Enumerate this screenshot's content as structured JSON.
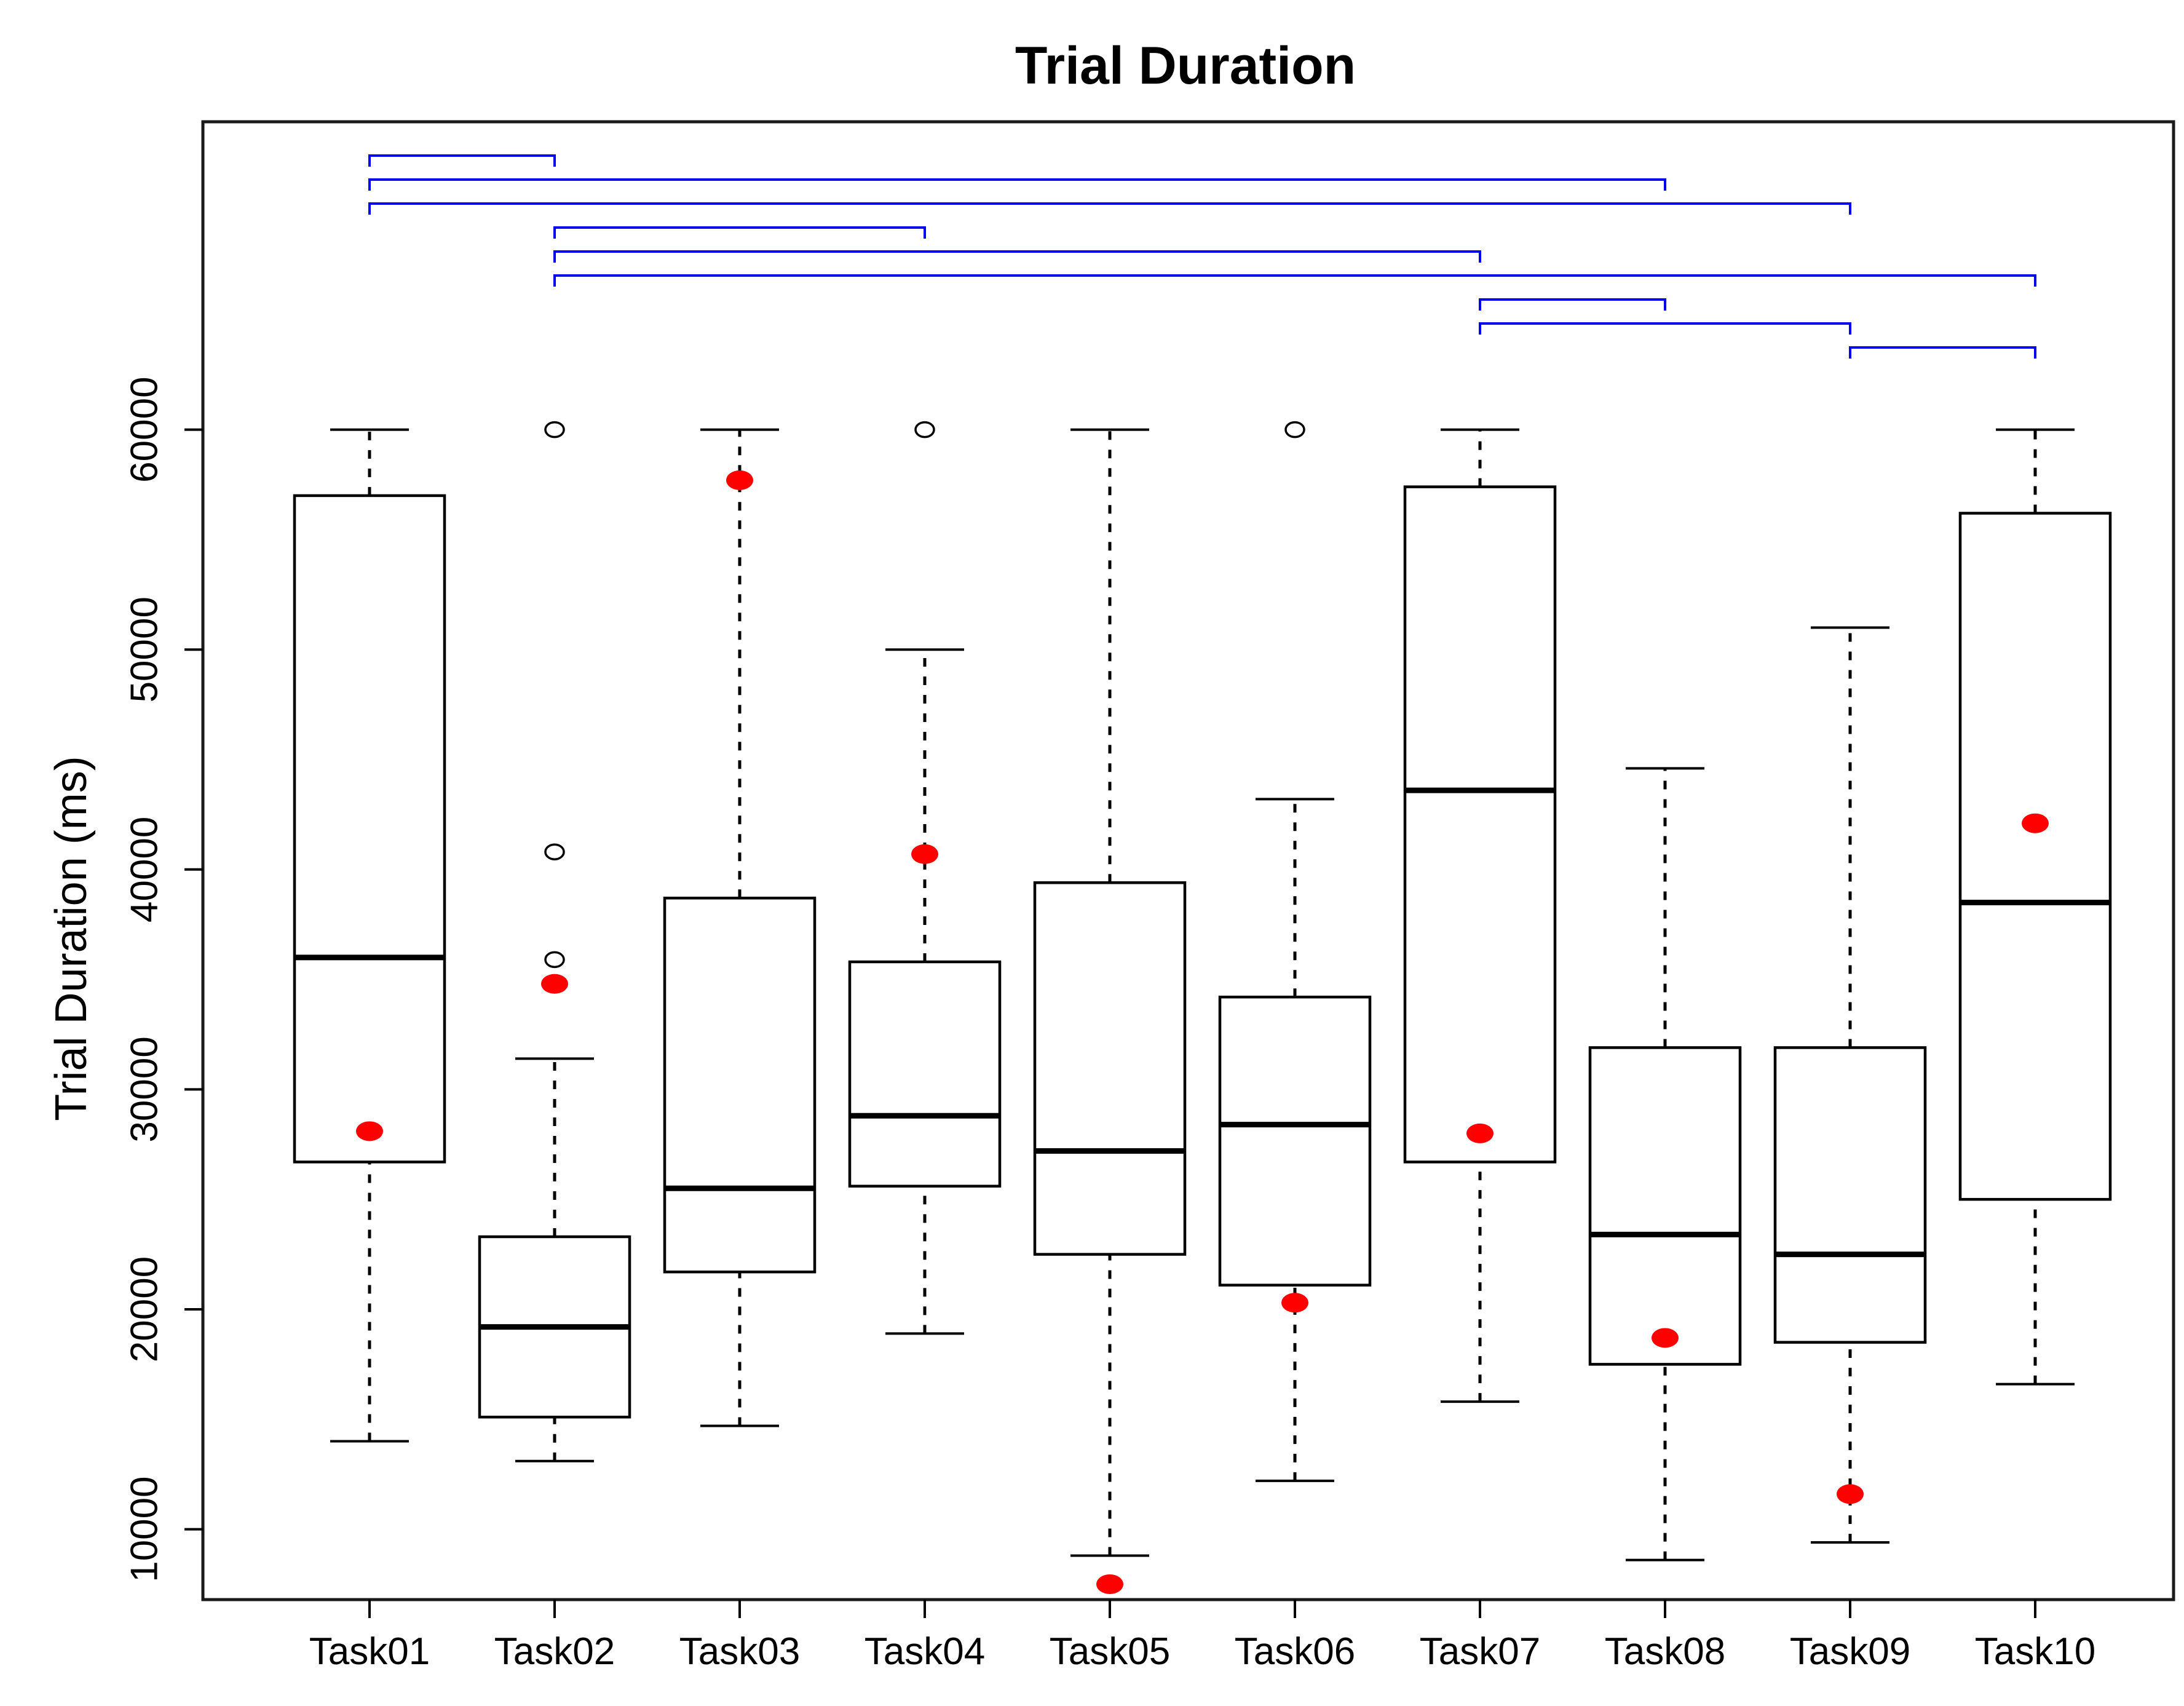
{
  "chart_data": {
    "type": "boxplot",
    "title": "Trial Duration",
    "ylabel": "Trial Duration (ms)",
    "xlabel": "",
    "grid": false,
    "legend": "none",
    "categories": [
      "Task01",
      "Task02",
      "Task03",
      "Task04",
      "Task05",
      "Task06",
      "Task07",
      "Task08",
      "Task09",
      "Task10"
    ],
    "yticks": [
      10000,
      20000,
      30000,
      40000,
      50000,
      60000
    ],
    "ylim": [
      6800,
      74000
    ],
    "colors": {
      "box_fill": "#ffffff",
      "line": "#000000",
      "mean_dot": "#ff0000",
      "outlier_stroke": "#000000",
      "bracket": "#0000ee"
    },
    "boxes": [
      {
        "label": "Task01",
        "whisker_low": 14000,
        "q1": 26700,
        "median": 36000,
        "q3": 57000,
        "whisker_high": 60000,
        "mean": 28100,
        "outliers": []
      },
      {
        "label": "Task02",
        "whisker_low": 13100,
        "q1": 15100,
        "median": 19200,
        "q3": 23300,
        "whisker_high": 31400,
        "mean": 34800,
        "outliers": [
          35900,
          40800,
          60000
        ]
      },
      {
        "label": "Task03",
        "whisker_low": 14700,
        "q1": 21700,
        "median": 25500,
        "q3": 38700,
        "whisker_high": 60000,
        "mean": 57700,
        "outliers": []
      },
      {
        "label": "Task04",
        "whisker_low": 18900,
        "q1": 25600,
        "median": 28800,
        "q3": 35800,
        "whisker_high": 50000,
        "mean": 40700,
        "outliers": [
          60000
        ]
      },
      {
        "label": "Task05",
        "whisker_low": 8800,
        "q1": 22500,
        "median": 27200,
        "q3": 39400,
        "whisker_high": 60000,
        "mean": 7500,
        "outliers": []
      },
      {
        "label": "Task06",
        "whisker_low": 12200,
        "q1": 21100,
        "median": 28400,
        "q3": 34200,
        "whisker_high": 43200,
        "mean": 20300,
        "outliers": [
          60000
        ]
      },
      {
        "label": "Task07",
        "whisker_low": 15800,
        "q1": 26700,
        "median": 43600,
        "q3": 57400,
        "whisker_high": 60000,
        "mean": 28000,
        "outliers": []
      },
      {
        "label": "Task08",
        "whisker_low": 8600,
        "q1": 17500,
        "median": 23400,
        "q3": 31900,
        "whisker_high": 44600,
        "mean": 18700,
        "outliers": []
      },
      {
        "label": "Task09",
        "whisker_low": 9400,
        "q1": 18500,
        "median": 22500,
        "q3": 31900,
        "whisker_high": 51000,
        "mean": 11600,
        "outliers": []
      },
      {
        "label": "Task10",
        "whisker_low": 16600,
        "q1": 25000,
        "median": 38500,
        "q3": 56200,
        "whisker_high": 60000,
        "mean": 42100,
        "outliers": []
      }
    ],
    "significance_brackets": [
      {
        "from": "Task01",
        "to": "Task02",
        "level": 0
      },
      {
        "from": "Task01",
        "to": "Task08",
        "level": 1
      },
      {
        "from": "Task01",
        "to": "Task09",
        "level": 2
      },
      {
        "from": "Task02",
        "to": "Task04",
        "level": 3
      },
      {
        "from": "Task02",
        "to": "Task07",
        "level": 4
      },
      {
        "from": "Task02",
        "to": "Task10",
        "level": 5
      },
      {
        "from": "Task07",
        "to": "Task08",
        "level": 6
      },
      {
        "from": "Task07",
        "to": "Task09",
        "level": 7
      },
      {
        "from": "Task09",
        "to": "Task10",
        "level": 8
      }
    ]
  }
}
